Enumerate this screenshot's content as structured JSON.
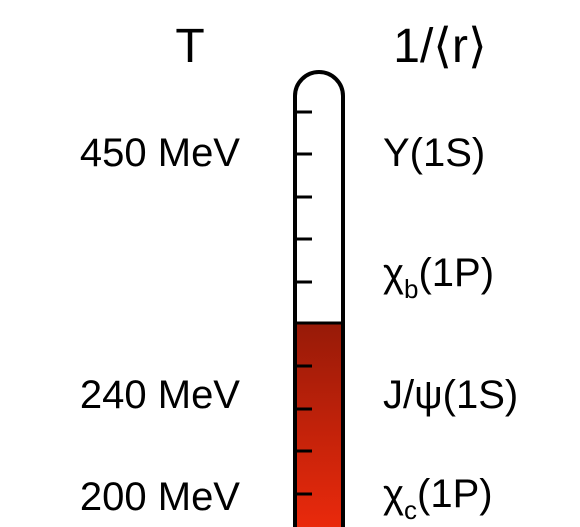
{
  "header": {
    "left": "T",
    "right": "1/⟨r⟩"
  },
  "temperatures": [
    "450 MeV",
    "240 MeV",
    "200 MeV"
  ],
  "states": [
    {
      "label": "Υ(1S)"
    },
    {
      "symbol": "χ",
      "subscript": "b",
      "suffix": "(1P)"
    },
    {
      "label": "J/ψ(1S)"
    },
    {
      "symbol": "χ",
      "subscript": "c",
      "suffix": "(1P)"
    }
  ]
}
